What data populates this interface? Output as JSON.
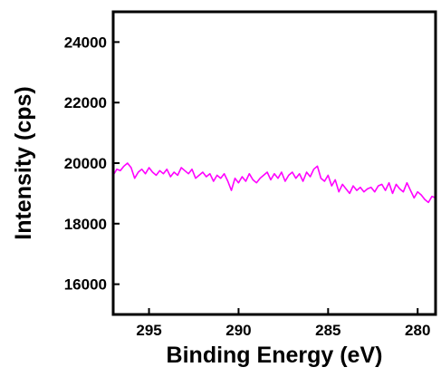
{
  "chart_data": {
    "type": "line",
    "title": "",
    "xlabel": "Binding Energy (eV)",
    "ylabel": "Intensity (cps)",
    "xlim": [
      297,
      279
    ],
    "ylim": [
      15000,
      25000
    ],
    "x_reversed": true,
    "xticks": [
      295,
      290,
      285,
      280
    ],
    "yticks": [
      16000,
      18000,
      20000,
      22000,
      24000
    ],
    "grid": false,
    "legend": "none",
    "series": [
      {
        "color": "#ff00ff",
        "x": [
          297.0,
          296.8,
          296.6,
          296.4,
          296.2,
          296.0,
          295.8,
          295.6,
          295.4,
          295.2,
          295.0,
          294.8,
          294.6,
          294.4,
          294.2,
          294.0,
          293.8,
          293.6,
          293.4,
          293.2,
          293.0,
          292.8,
          292.6,
          292.4,
          292.2,
          292.0,
          291.8,
          291.6,
          291.4,
          291.2,
          291.0,
          290.8,
          290.6,
          290.4,
          290.2,
          290.0,
          289.8,
          289.6,
          289.4,
          289.2,
          289.0,
          288.8,
          288.6,
          288.4,
          288.2,
          288.0,
          287.8,
          287.6,
          287.4,
          287.2,
          287.0,
          286.8,
          286.6,
          286.4,
          286.2,
          286.0,
          285.8,
          285.6,
          285.4,
          285.2,
          285.0,
          284.8,
          284.6,
          284.4,
          284.2,
          284.0,
          283.8,
          283.6,
          283.4,
          283.2,
          283.0,
          282.8,
          282.6,
          282.4,
          282.2,
          282.0,
          281.8,
          281.6,
          281.4,
          281.2,
          281.0,
          280.8,
          280.6,
          280.4,
          280.2,
          280.0,
          279.8,
          279.6,
          279.4,
          279.2,
          279.0
        ],
        "y": [
          19600,
          19800,
          19750,
          19900,
          20000,
          19850,
          19500,
          19700,
          19800,
          19650,
          19850,
          19700,
          19600,
          19750,
          19650,
          19800,
          19550,
          19700,
          19600,
          19850,
          19750,
          19650,
          19800,
          19500,
          19600,
          19700,
          19550,
          19650,
          19400,
          19600,
          19500,
          19650,
          19400,
          19100,
          19500,
          19350,
          19550,
          19400,
          19650,
          19450,
          19350,
          19500,
          19600,
          19700,
          19450,
          19650,
          19500,
          19700,
          19400,
          19600,
          19700,
          19500,
          19650,
          19400,
          19700,
          19550,
          19800,
          19900,
          19500,
          19400,
          19600,
          19250,
          19450,
          19050,
          19300,
          19150,
          19000,
          19250,
          19100,
          19200,
          19050,
          19150,
          19200,
          19050,
          19250,
          19300,
          19100,
          19350,
          19000,
          19300,
          19150,
          19050,
          19350,
          19100,
          18850,
          19050,
          18950,
          18800,
          18700,
          18900,
          18850
        ]
      }
    ]
  }
}
